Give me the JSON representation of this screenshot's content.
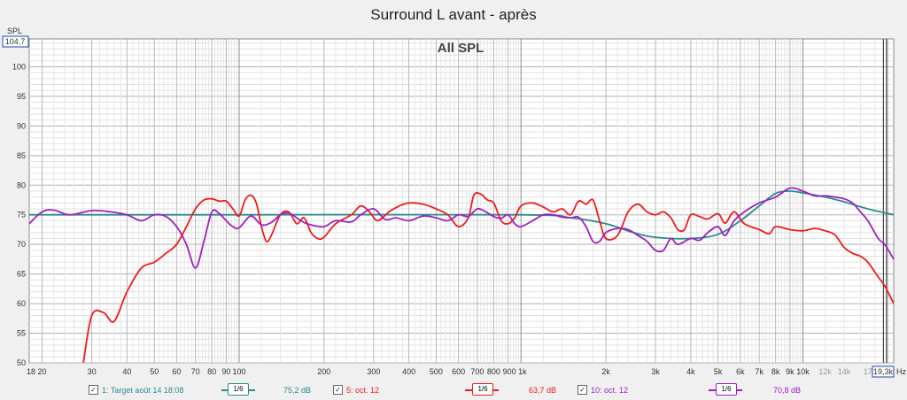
{
  "title": "Surround L avant - après",
  "inner_label": "All SPL",
  "y_axis_label": "SPL",
  "y_top_readout": "104,7",
  "x_unit": "Hz",
  "x_right_readout": "19,3k",
  "colors": {
    "target": "#2a8c8c",
    "oct5": "#ee1c1c",
    "oct10": "#a020c0",
    "grid": "#c8c8c8",
    "grid_major": "#8c8c8c"
  },
  "chart_data": {
    "type": "line",
    "title": "Surround L avant - après",
    "subtitle": "All SPL",
    "xlabel": "Hz",
    "ylabel": "SPL",
    "x_scale": "log",
    "xlim": [
      18,
      21000
    ],
    "ylim": [
      50,
      104.7
    ],
    "grid": true,
    "x_ticks": [
      "18",
      "20",
      "30",
      "40",
      "50",
      "60",
      "70",
      "80",
      "90",
      "100",
      "200",
      "300",
      "400",
      "500",
      "600",
      "700",
      "800",
      "900 1k",
      "2k",
      "3k",
      "4k",
      "5k",
      "6k",
      "7k",
      "8k",
      "9k",
      "10k",
      "12k",
      "14k",
      "17"
    ],
    "y_ticks": [
      "50",
      "55",
      "60",
      "65",
      "70",
      "75",
      "80",
      "85",
      "90",
      "95",
      "100"
    ],
    "series": [
      {
        "name": "1: Target août 14 18:08",
        "smoothing": "1/6",
        "level": "75,2 dB",
        "color": "#2a8c8c",
        "points": [
          [
            18,
            75
          ],
          [
            100,
            75
          ],
          [
            1000,
            75
          ],
          [
            1500,
            74.5
          ],
          [
            2000,
            73.5
          ],
          [
            2500,
            72
          ],
          [
            3000,
            71.2
          ],
          [
            4000,
            71
          ],
          [
            5000,
            71.7
          ],
          [
            6000,
            74
          ],
          [
            7000,
            76.5
          ],
          [
            8000,
            78.6
          ],
          [
            9000,
            79
          ],
          [
            10000,
            78.7
          ],
          [
            12000,
            78
          ],
          [
            14000,
            77.2
          ],
          [
            17000,
            76
          ],
          [
            21000,
            75
          ]
        ]
      },
      {
        "name": "5: oct. 12",
        "smoothing": "1/6",
        "level": "63,7 dB",
        "color": "#ee1c1c",
        "points": [
          [
            28,
            50
          ],
          [
            30,
            58
          ],
          [
            33,
            58.5
          ],
          [
            36,
            57
          ],
          [
            40,
            62
          ],
          [
            45,
            66
          ],
          [
            50,
            67
          ],
          [
            55,
            68.5
          ],
          [
            60,
            70
          ],
          [
            65,
            73
          ],
          [
            70,
            76
          ],
          [
            75,
            77.5
          ],
          [
            80,
            77.7
          ],
          [
            85,
            77.3
          ],
          [
            90,
            77.3
          ],
          [
            95,
            76
          ],
          [
            100,
            74.8
          ],
          [
            105,
            77.5
          ],
          [
            110,
            78.3
          ],
          [
            115,
            77
          ],
          [
            120,
            73
          ],
          [
            125,
            70.5
          ],
          [
            130,
            71.5
          ],
          [
            140,
            75
          ],
          [
            150,
            75.5
          ],
          [
            160,
            73.5
          ],
          [
            170,
            74.5
          ],
          [
            180,
            72
          ],
          [
            190,
            71
          ],
          [
            200,
            71.2
          ],
          [
            220,
            73.5
          ],
          [
            250,
            75
          ],
          [
            270,
            76.5
          ],
          [
            290,
            75.5
          ],
          [
            310,
            74
          ],
          [
            340,
            75.5
          ],
          [
            370,
            76.5
          ],
          [
            400,
            77
          ],
          [
            450,
            76.8
          ],
          [
            500,
            76
          ],
          [
            550,
            75
          ],
          [
            600,
            73
          ],
          [
            650,
            74.5
          ],
          [
            680,
            78.3
          ],
          [
            720,
            78.5
          ],
          [
            760,
            77.5
          ],
          [
            800,
            77
          ],
          [
            850,
            74
          ],
          [
            900,
            73.5
          ],
          [
            950,
            74.5
          ],
          [
            1000,
            76.5
          ],
          [
            1100,
            77
          ],
          [
            1200,
            76.3
          ],
          [
            1300,
            75.5
          ],
          [
            1400,
            76
          ],
          [
            1500,
            75
          ],
          [
            1600,
            77.3
          ],
          [
            1700,
            76.8
          ],
          [
            1800,
            77.5
          ],
          [
            1900,
            74
          ],
          [
            2000,
            71
          ],
          [
            2200,
            71.5
          ],
          [
            2400,
            75.5
          ],
          [
            2600,
            76.8
          ],
          [
            2800,
            75.5
          ],
          [
            3000,
            75
          ],
          [
            3200,
            75.5
          ],
          [
            3400,
            74.5
          ],
          [
            3600,
            72.5
          ],
          [
            3800,
            72.5
          ],
          [
            4000,
            75
          ],
          [
            4300,
            74.7
          ],
          [
            4600,
            74.3
          ],
          [
            5000,
            75.2
          ],
          [
            5300,
            73.6
          ],
          [
            5700,
            75.5
          ],
          [
            6200,
            73.5
          ],
          [
            7000,
            72.5
          ],
          [
            7600,
            71.8
          ],
          [
            8000,
            73
          ],
          [
            9000,
            72.5
          ],
          [
            10000,
            72.3
          ],
          [
            11000,
            72.7
          ],
          [
            12000,
            72.3
          ],
          [
            13000,
            71.6
          ],
          [
            14000,
            69.5
          ],
          [
            15000,
            68.5
          ],
          [
            16000,
            68
          ],
          [
            17000,
            67
          ],
          [
            18500,
            64.5
          ],
          [
            19500,
            63
          ],
          [
            21000,
            60
          ]
        ]
      },
      {
        "name": "10: oct. 12",
        "smoothing": "1/6",
        "level": "70,8 dB",
        "color": "#a020c0",
        "points": [
          [
            18,
            73.5
          ],
          [
            20,
            75.5
          ],
          [
            22,
            75.8
          ],
          [
            25,
            75
          ],
          [
            30,
            75.7
          ],
          [
            35,
            75.5
          ],
          [
            40,
            75
          ],
          [
            45,
            74
          ],
          [
            50,
            75
          ],
          [
            55,
            74.7
          ],
          [
            60,
            73
          ],
          [
            65,
            70
          ],
          [
            70,
            66
          ],
          [
            75,
            70.5
          ],
          [
            80,
            75.5
          ],
          [
            85,
            75.2
          ],
          [
            90,
            74
          ],
          [
            95,
            73
          ],
          [
            100,
            72.8
          ],
          [
            110,
            74.8
          ],
          [
            120,
            73.3
          ],
          [
            130,
            73.7
          ],
          [
            140,
            75
          ],
          [
            150,
            75.3
          ],
          [
            160,
            74.5
          ],
          [
            170,
            73.7
          ],
          [
            180,
            73.3
          ],
          [
            200,
            73
          ],
          [
            220,
            74
          ],
          [
            250,
            73.8
          ],
          [
            270,
            75
          ],
          [
            300,
            76
          ],
          [
            330,
            74.2
          ],
          [
            360,
            74.5
          ],
          [
            400,
            74
          ],
          [
            450,
            74.8
          ],
          [
            500,
            74.5
          ],
          [
            550,
            74
          ],
          [
            600,
            75
          ],
          [
            650,
            74.7
          ],
          [
            700,
            76
          ],
          [
            750,
            75.5
          ],
          [
            800,
            74.7
          ],
          [
            850,
            74.4
          ],
          [
            900,
            75
          ],
          [
            950,
            73.5
          ],
          [
            1000,
            73
          ],
          [
            1100,
            74
          ],
          [
            1200,
            75
          ],
          [
            1300,
            75
          ],
          [
            1400,
            74.6
          ],
          [
            1500,
            74.5
          ],
          [
            1600,
            74.6
          ],
          [
            1700,
            73
          ],
          [
            1800,
            70.5
          ],
          [
            1900,
            70.5
          ],
          [
            2000,
            72
          ],
          [
            2200,
            72.7
          ],
          [
            2400,
            72.5
          ],
          [
            2600,
            71.5
          ],
          [
            2800,
            70.5
          ],
          [
            3000,
            69
          ],
          [
            3200,
            69
          ],
          [
            3400,
            71
          ],
          [
            3600,
            70
          ],
          [
            4000,
            71
          ],
          [
            4300,
            70.7
          ],
          [
            4600,
            72
          ],
          [
            5000,
            73
          ],
          [
            5300,
            71.5
          ],
          [
            5700,
            74
          ],
          [
            6200,
            75.5
          ],
          [
            7000,
            77
          ],
          [
            8000,
            78
          ],
          [
            9000,
            79.5
          ],
          [
            10000,
            79
          ],
          [
            11000,
            78.2
          ],
          [
            12000,
            78.2
          ],
          [
            13000,
            78
          ],
          [
            14000,
            77.7
          ],
          [
            15000,
            77
          ],
          [
            16000,
            75.5
          ],
          [
            17000,
            74
          ],
          [
            18500,
            71
          ],
          [
            19500,
            70
          ],
          [
            21000,
            67.5
          ]
        ]
      }
    ]
  },
  "legend": [
    {
      "label": "1: Target août 14 18:08",
      "smoothing": "1/6",
      "level": "75,2 dB",
      "color": "#2a8c8c",
      "checked": "✓"
    },
    {
      "label": "5: oct. 12",
      "smoothing": "1/6",
      "level": "63,7 dB",
      "color": "#ee1c1c",
      "checked": "✓"
    },
    {
      "label": "10: oct. 12",
      "smoothing": "1/6",
      "level": "70,8 dB",
      "color": "#a020c0",
      "checked": "✓"
    }
  ]
}
